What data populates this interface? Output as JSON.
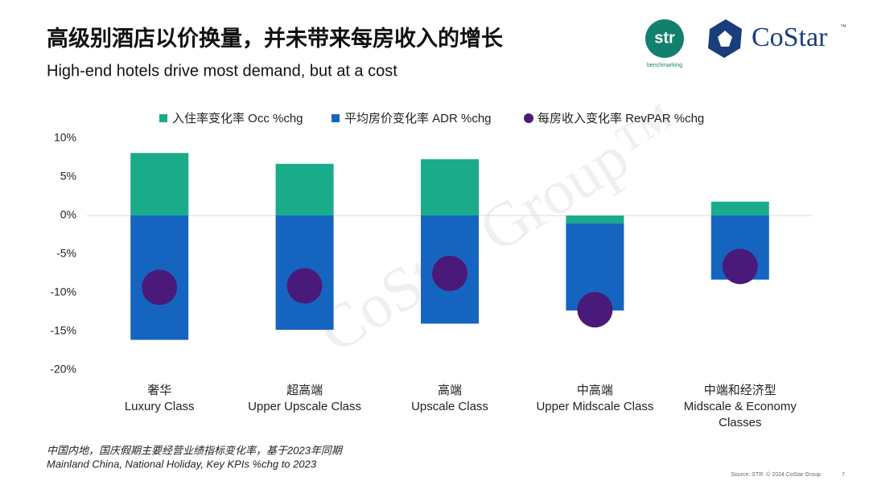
{
  "chart_data": {
    "type": "stacked_bar_dot",
    "title": "高级别酒店以价换量，并未带来每房收入的增长",
    "subtitle": "High-end hotels drive most demand, but at a cost",
    "categories": [
      [
        "奢华",
        "Luxury Class"
      ],
      [
        "超高端",
        "Upper Upscale Class"
      ],
      [
        "高端",
        "Upscale Class"
      ],
      [
        "中高端",
        "Upper Midscale Class"
      ],
      [
        "中端和经济型",
        "Midscale & Economy",
        "Classes"
      ]
    ],
    "series": [
      {
        "name": "入住率变化率 Occ %chg",
        "color": "#1aab8b",
        "kind": "bar",
        "values": [
          8.1,
          6.7,
          7.3,
          -1.0,
          1.8
        ]
      },
      {
        "name": "平均房价变化率 ADR %chg",
        "color": "#1565c0",
        "kind": "bar",
        "values": [
          -16.1,
          -14.8,
          -14.0,
          -11.3,
          -8.3
        ]
      },
      {
        "name": "每房收入变化率 RevPAR %chg",
        "color": "#4a1a7a",
        "kind": "dot",
        "values": [
          -9.3,
          -9.1,
          -7.5,
          -12.2,
          -6.6
        ]
      }
    ],
    "ylim": [
      -20,
      10
    ],
    "yticks": [
      {
        "value": 10,
        "label": "10%"
      },
      {
        "value": 5,
        "label": "5%"
      },
      {
        "value": 0,
        "label": "0%"
      },
      {
        "value": -5,
        "label": "-5%"
      },
      {
        "value": -10,
        "label": "-10%"
      },
      {
        "value": -15,
        "label": "-15%"
      },
      {
        "value": -20,
        "label": "-20%"
      }
    ],
    "legend": "top"
  },
  "watermark": "CoStar Group™",
  "logos": {
    "str": "str",
    "str_sub": "benchmarking",
    "costar": "CoStar",
    "tm": "™"
  },
  "footnote": [
    "中国内地，国庆假期主要经营业绩指标变化率，基于2023年同期",
    "Mainland China, National Holiday,  Key KPIs %chg to 2023"
  ],
  "source": "Source: STR. © 2024 CoStar Group",
  "page": "7"
}
